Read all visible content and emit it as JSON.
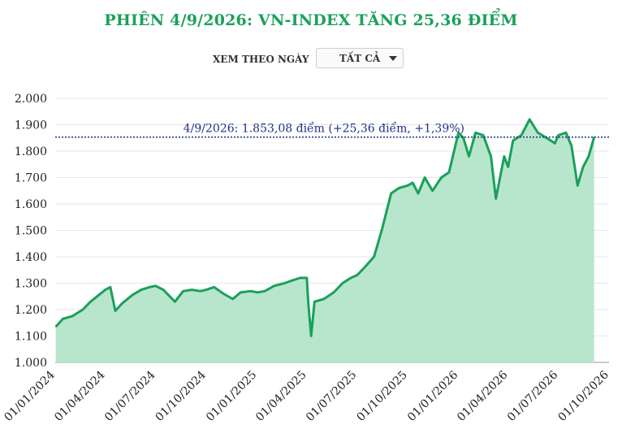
{
  "title": "PHIÊN 4/9/2026: VN-INDEX TĂNG 25,36 ĐIỂM",
  "filter": {
    "label": "XEM THEO NGÀY",
    "selected": "TẤT CẢ"
  },
  "colors": {
    "title": "#1aa05a",
    "line": "#1aa05a",
    "area": "#b8e6cc",
    "reference": "#1f2f8a"
  },
  "chart_data": {
    "type": "area",
    "title": "PHIÊN 4/9/2026: VN-INDEX TĂNG 25,36 ĐIỂM",
    "xlabel": "",
    "ylabel": "",
    "ylim": [
      1000,
      2000
    ],
    "xlim": [
      "2024-01-01",
      "2026-10-01"
    ],
    "y_ticks": [
      1000,
      1100,
      1200,
      1300,
      1400,
      1500,
      1600,
      1700,
      1800,
      1900,
      2000
    ],
    "y_tick_labels": [
      "1.000",
      "1.100",
      "1.200",
      "1.300",
      "1.400",
      "1.500",
      "1.600",
      "1.700",
      "1.800",
      "1.900",
      "2.000"
    ],
    "x_ticks": [
      "2024-01-01",
      "2024-04-01",
      "2024-07-01",
      "2024-10-01",
      "2025-01-01",
      "2025-04-01",
      "2025-07-01",
      "2025-10-01",
      "2026-01-01",
      "2026-04-01",
      "2026-07-01",
      "2026-10-01"
    ],
    "x_tick_labels": [
      "01/01/2024",
      "01/04/2024",
      "01/07/2024",
      "01/10/2024",
      "01/01/2025",
      "01/04/2025",
      "01/07/2025",
      "01/10/2025",
      "01/01/2026",
      "01/04/2026",
      "01/07/2026",
      "01/10/2026"
    ],
    "grid": true,
    "reference_line": {
      "y": 1853.08,
      "label": "4/9/2026: 1.853,08 điểm (+25,36 điểm, +1,39%)"
    },
    "series": [
      {
        "x": [
          "2024-01-02",
          "2024-01-15",
          "2024-02-01",
          "2024-02-20",
          "2024-03-05",
          "2024-03-20",
          "2024-04-01",
          "2024-04-10",
          "2024-04-19",
          "2024-05-02",
          "2024-05-20",
          "2024-06-05",
          "2024-06-20",
          "2024-07-01",
          "2024-07-15",
          "2024-08-05",
          "2024-08-20",
          "2024-09-05",
          "2024-09-20",
          "2024-10-01",
          "2024-10-15",
          "2024-11-01",
          "2024-11-18",
          "2024-12-02",
          "2024-12-20",
          "2025-01-02",
          "2025-01-15",
          "2025-02-01",
          "2025-02-20",
          "2025-03-05",
          "2025-03-20",
          "2025-04-01",
          "2025-04-04",
          "2025-04-09",
          "2025-04-15",
          "2025-05-02",
          "2025-05-20",
          "2025-06-05",
          "2025-06-20",
          "2025-07-01",
          "2025-07-15",
          "2025-08-01",
          "2025-08-15",
          "2025-09-01",
          "2025-09-15",
          "2025-10-01",
          "2025-10-10",
          "2025-10-20",
          "2025-11-01",
          "2025-11-15",
          "2025-12-01",
          "2025-12-15",
          "2026-01-01",
          "2026-01-10",
          "2026-01-20",
          "2026-02-01",
          "2026-02-15",
          "2026-03-01",
          "2026-03-10",
          "2026-03-25",
          "2026-04-01",
          "2026-04-10",
          "2026-04-25",
          "2026-05-10",
          "2026-05-25",
          "2026-06-10",
          "2026-06-25",
          "2026-07-01",
          "2026-07-15",
          "2026-07-25",
          "2026-08-05",
          "2026-08-15",
          "2026-08-25",
          "2026-09-04"
        ],
        "values": [
          1135,
          1165,
          1175,
          1200,
          1230,
          1255,
          1275,
          1285,
          1195,
          1225,
          1255,
          1275,
          1285,
          1290,
          1275,
          1230,
          1270,
          1275,
          1270,
          1275,
          1285,
          1260,
          1240,
          1265,
          1270,
          1265,
          1270,
          1290,
          1300,
          1310,
          1320,
          1320,
          1220,
          1100,
          1230,
          1240,
          1265,
          1300,
          1320,
          1330,
          1360,
          1400,
          1500,
          1640,
          1660,
          1670,
          1680,
          1640,
          1700,
          1650,
          1700,
          1720,
          1870,
          1850,
          1780,
          1870,
          1860,
          1780,
          1620,
          1780,
          1740,
          1840,
          1860,
          1920,
          1870,
          1850,
          1830,
          1860,
          1870,
          1820,
          1670,
          1740,
          1780,
          1853.08
        ]
      }
    ]
  }
}
